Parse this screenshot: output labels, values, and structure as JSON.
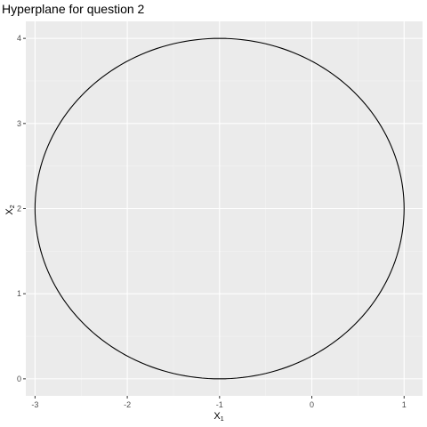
{
  "chart_data": {
    "type": "line",
    "title": "Hyperplane for question 2",
    "xlabel": "X",
    "xlabel_sub": "1",
    "ylabel": "X",
    "ylabel_sub": "2",
    "xlim": [
      -3.1,
      1.2
    ],
    "ylim": [
      -0.2,
      4.2
    ],
    "x_ticks": [
      -3,
      -2,
      -1,
      0,
      1
    ],
    "y_ticks": [
      0,
      1,
      2,
      3,
      4
    ],
    "x_tick_labels": [
      "-3",
      "-2",
      "-1",
      "0",
      "1"
    ],
    "y_tick_labels": [
      "0",
      "1",
      "2",
      "3",
      "4"
    ],
    "grid": true,
    "series": [
      {
        "shape": "circle",
        "center": [
          -1,
          2
        ],
        "radius": 2,
        "points": 200
      }
    ],
    "colors": {
      "panel_background": "#ebebeb",
      "grid_major": "#ffffff",
      "line": "#000000",
      "tick_text": "#4d4d4d"
    }
  }
}
